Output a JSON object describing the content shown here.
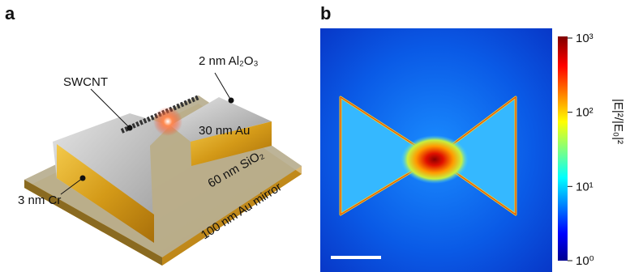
{
  "panel_a": {
    "label": "a",
    "annotations": {
      "swcnt": "SWCNT",
      "oxide": "2 nm Al₂O₃",
      "gold": "30 nm Au",
      "silica": "60 nm SiO₂",
      "mirror": "100 nm Au mirror",
      "chromium": "3 nm Cr"
    }
  },
  "panel_b": {
    "label": "b",
    "colorbar": {
      "label": "|E|²/|E₀|²",
      "scale": "log",
      "lim": [
        1,
        1000
      ],
      "ticks": [
        {
          "value": 1,
          "label": "10⁰"
        },
        {
          "value": 10,
          "label": "10¹"
        },
        {
          "value": 100,
          "label": "10²"
        },
        {
          "value": 1000,
          "label": "10³"
        }
      ]
    }
  }
}
